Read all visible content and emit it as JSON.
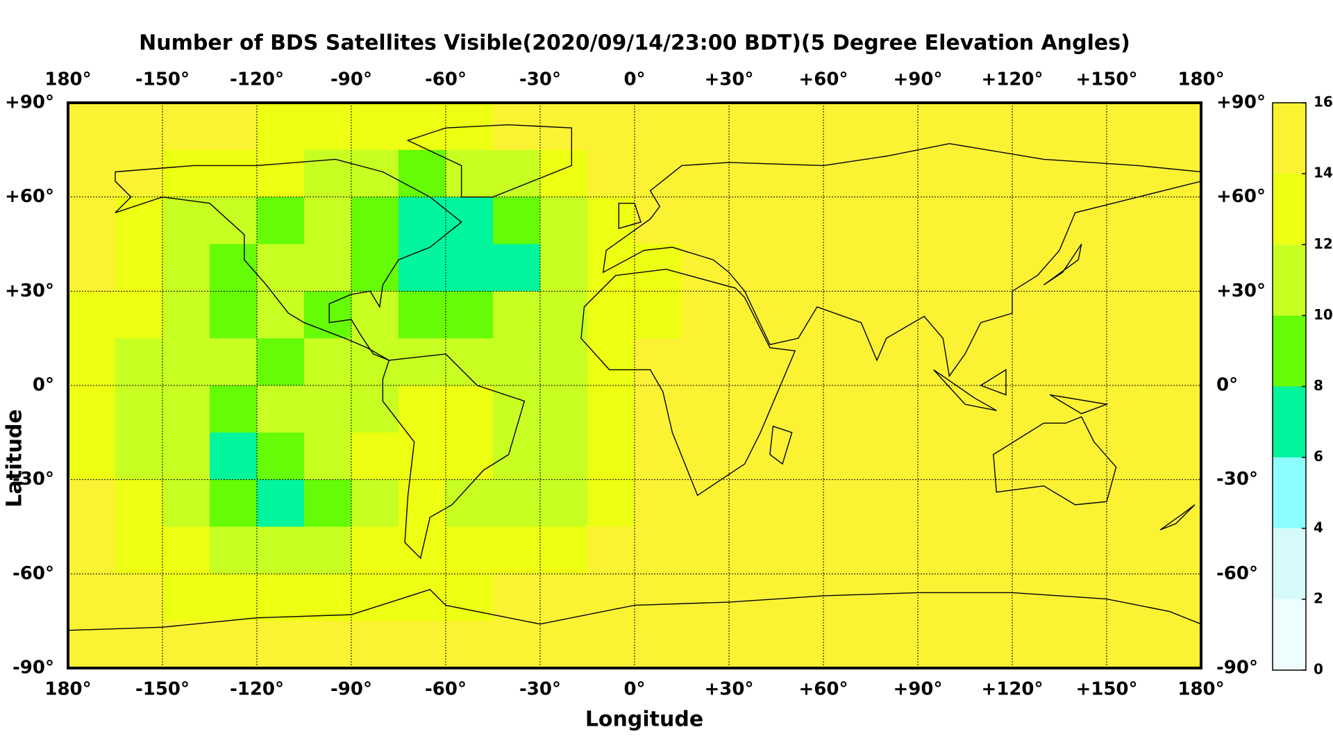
{
  "chart_data": {
    "type": "heatmap",
    "title": "Number of BDS Satellites Visible(2020/09/14/23:00 BDT)(5 Degree Elevation Angles)",
    "x_label": "Longitude",
    "y_label": "Latitude",
    "x": [
      -172.5,
      -157.5,
      -142.5,
      -127.5,
      -112.5,
      -97.5,
      -82.5,
      -67.5,
      -52.5,
      -37.5,
      -22.5,
      -7.5,
      7.5,
      22.5,
      37.5,
      52.5,
      67.5,
      82.5,
      97.5,
      112.5,
      127.5,
      142.5,
      157.5,
      172.5
    ],
    "y": [
      82.5,
      67.5,
      52.5,
      37.5,
      22.5,
      7.5,
      -7.5,
      -22.5,
      -37.5,
      -52.5,
      -67.5,
      -82.5
    ],
    "values": [
      [
        15,
        15,
        15,
        15,
        13,
        13,
        13,
        13,
        13,
        15,
        15,
        15,
        15,
        15,
        15,
        15,
        15,
        15,
        15,
        15,
        15,
        15,
        15,
        15
      ],
      [
        15,
        15,
        13,
        13,
        13,
        11,
        11,
        9,
        11,
        11,
        13,
        15,
        15,
        15,
        15,
        15,
        15,
        15,
        15,
        15,
        15,
        15,
        15,
        15
      ],
      [
        15,
        13,
        11,
        11,
        9,
        11,
        9,
        7,
        7,
        9,
        11,
        13,
        15,
        15,
        15,
        15,
        15,
        15,
        15,
        15,
        15,
        15,
        15,
        15
      ],
      [
        15,
        13,
        11,
        9,
        11,
        11,
        9,
        7,
        7,
        7,
        11,
        13,
        13,
        15,
        15,
        15,
        15,
        15,
        15,
        15,
        15,
        15,
        15,
        15
      ],
      [
        13,
        13,
        11,
        9,
        11,
        9,
        11,
        9,
        9,
        11,
        11,
        13,
        13,
        15,
        15,
        15,
        15,
        15,
        15,
        15,
        15,
        15,
        15,
        15
      ],
      [
        13,
        11,
        11,
        11,
        9,
        11,
        11,
        11,
        11,
        11,
        11,
        13,
        15,
        15,
        15,
        15,
        15,
        15,
        15,
        15,
        15,
        15,
        15,
        15
      ],
      [
        13,
        11,
        11,
        9,
        11,
        11,
        11,
        13,
        13,
        11,
        11,
        13,
        15,
        15,
        15,
        15,
        15,
        15,
        15,
        15,
        15,
        15,
        15,
        15
      ],
      [
        13,
        11,
        11,
        7,
        9,
        11,
        13,
        13,
        13,
        11,
        11,
        13,
        15,
        15,
        15,
        15,
        15,
        15,
        15,
        15,
        15,
        15,
        15,
        15
      ],
      [
        15,
        13,
        11,
        9,
        7,
        9,
        11,
        13,
        11,
        11,
        11,
        13,
        15,
        15,
        15,
        15,
        15,
        15,
        15,
        15,
        15,
        15,
        15,
        15
      ],
      [
        15,
        13,
        13,
        11,
        11,
        11,
        13,
        13,
        13,
        13,
        13,
        15,
        15,
        15,
        15,
        15,
        15,
        15,
        15,
        15,
        15,
        15,
        15,
        15
      ],
      [
        15,
        15,
        13,
        13,
        13,
        13,
        13,
        13,
        13,
        15,
        15,
        15,
        15,
        15,
        15,
        15,
        15,
        15,
        15,
        15,
        15,
        15,
        15,
        15
      ],
      [
        15,
        15,
        15,
        15,
        15,
        15,
        15,
        15,
        15,
        15,
        15,
        15,
        15,
        15,
        15,
        15,
        15,
        15,
        15,
        15,
        15,
        15,
        15,
        15
      ]
    ],
    "xlim": [
      -180,
      180
    ],
    "ylim": [
      -90,
      90
    ],
    "xticks": [
      {
        "value": -180,
        "label": "180°"
      },
      {
        "value": -150,
        "label": "-150°"
      },
      {
        "value": -120,
        "label": "-120°"
      },
      {
        "value": -90,
        "label": "-90°"
      },
      {
        "value": -60,
        "label": "-60°"
      },
      {
        "value": -30,
        "label": "-30°"
      },
      {
        "value": 0,
        "label": "0°"
      },
      {
        "value": 30,
        "label": "+30°"
      },
      {
        "value": 60,
        "label": "+60°"
      },
      {
        "value": 90,
        "label": "+90°"
      },
      {
        "value": 120,
        "label": "+120°"
      },
      {
        "value": 150,
        "label": "+150°"
      },
      {
        "value": 180,
        "label": "180°"
      }
    ],
    "yticks": [
      {
        "value": -90,
        "label": "-90°"
      },
      {
        "value": -60,
        "label": "-60°"
      },
      {
        "value": -30,
        "label": "-30°"
      },
      {
        "value": 0,
        "label": "0°"
      },
      {
        "value": 30,
        "label": "+30°"
      },
      {
        "value": 60,
        "label": "+60°"
      },
      {
        "value": 90,
        "label": "+90°"
      }
    ],
    "grid": true,
    "colorbar": {
      "ticks": [
        0,
        2,
        4,
        6,
        8,
        10,
        12,
        14,
        16
      ],
      "colors": [
        "#eefdfd",
        "#d6fafa",
        "#8cfefe",
        "#00f59c",
        "#66fb06",
        "#c8ff22",
        "#edff12",
        "#fcf234"
      ]
    }
  }
}
